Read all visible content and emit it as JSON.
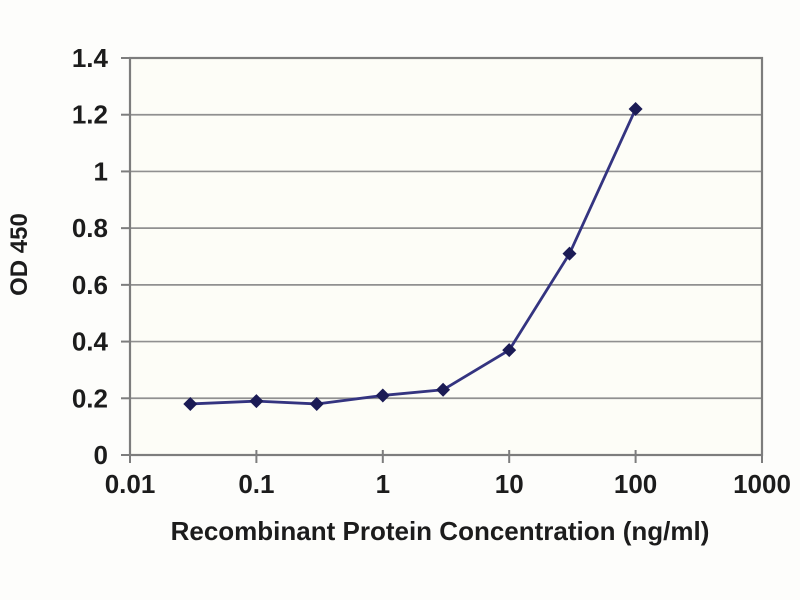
{
  "figure": {
    "description": "ELISA standard curve line chart"
  },
  "chart_data": {
    "type": "line",
    "x": [
      0.03,
      0.1,
      0.3,
      1,
      3,
      10,
      30,
      100
    ],
    "y": [
      0.18,
      0.19,
      0.18,
      0.21,
      0.23,
      0.37,
      0.71,
      1.22
    ],
    "title": "",
    "xlabel": "Recombinant Protein Concentration (ng/ml)",
    "ylabel": "OD 450",
    "x_scale": "log",
    "xlim": [
      0.01,
      1000
    ],
    "ylim": [
      0,
      1.4
    ],
    "x_ticks": [
      0.01,
      0.1,
      1,
      10,
      100,
      1000
    ],
    "x_tick_labels": [
      "0.01",
      "0.1",
      "1",
      "10",
      "100",
      "1000"
    ],
    "y_ticks": [
      0,
      0.2,
      0.4,
      0.6,
      0.8,
      1,
      1.2,
      1.4
    ],
    "y_tick_labels": [
      "0",
      "0.2",
      "0.4",
      "0.6",
      "0.8",
      "1",
      "1.2",
      "1.4"
    ],
    "grid": "horizontal",
    "legend": "none",
    "marker": "diamond",
    "colors": {
      "line": "#343480",
      "marker": "#1b1b55",
      "grid": "#909090",
      "frame": "#7d7d7d",
      "text": "#1c1c1c",
      "background": "#fdfdfb",
      "plot_background": "#fdfdf7"
    }
  }
}
